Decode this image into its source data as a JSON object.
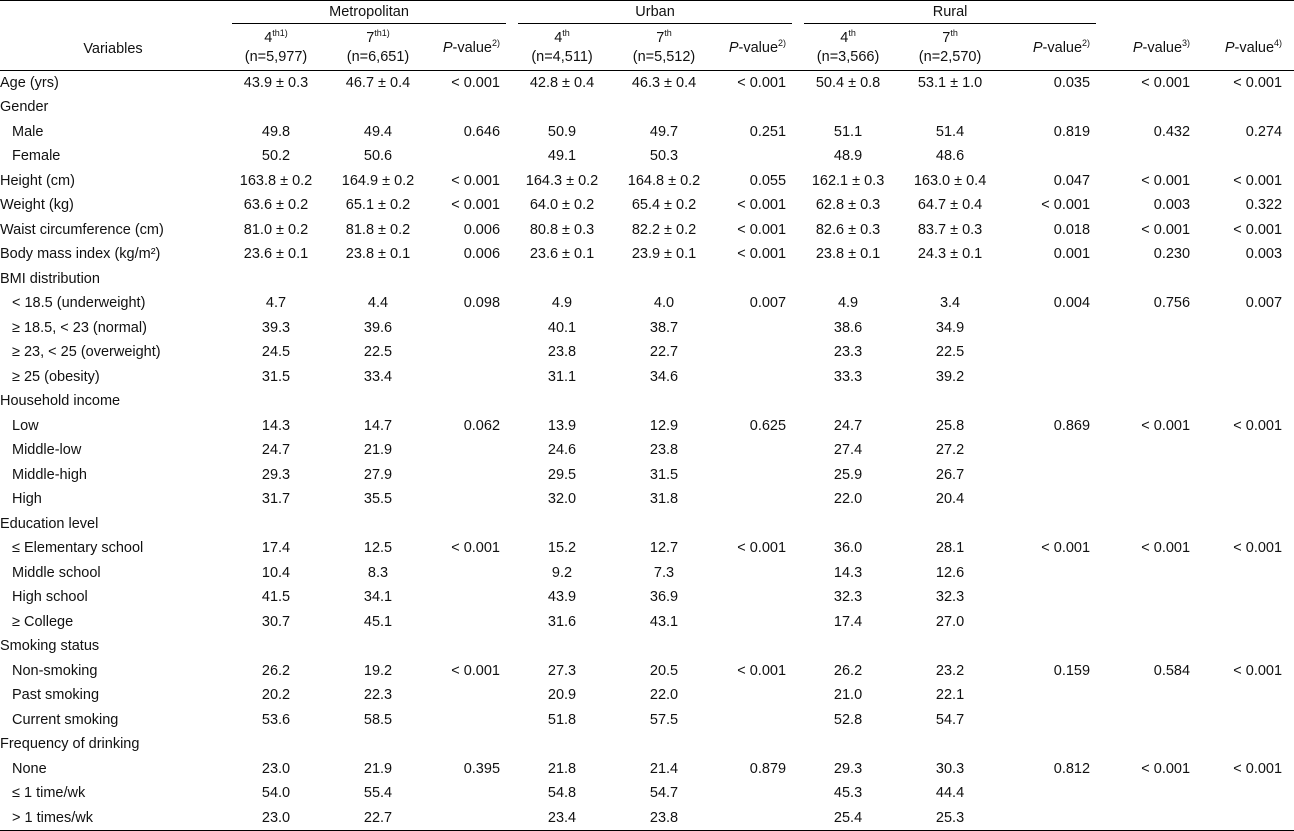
{
  "header": {
    "variables": "Variables",
    "groups": [
      "Metropolitan",
      "Urban",
      "Rural"
    ],
    "metro_4": {
      "label": "4",
      "sup": "th1)",
      "n": "(n=5,977)"
    },
    "metro_7": {
      "label": "7",
      "sup": "th1)",
      "n": "(n=6,651)"
    },
    "urban_4": {
      "label": "4",
      "sup": "th",
      "n": "(n=4,511)"
    },
    "urban_7": {
      "label": "7",
      "sup": "th",
      "n": "(n=5,512)"
    },
    "rural_4": {
      "label": "4",
      "sup": "th",
      "n": "(n=3,566)"
    },
    "rural_7": {
      "label": "7",
      "sup": "th",
      "n": "(n=2,570)"
    },
    "pvalue_prefix": "P",
    "pvalue_suffix": "-value",
    "pvalue_sups": [
      "2)",
      "2)",
      "2)",
      "3)",
      "4)"
    ]
  },
  "rows": [
    {
      "label": "Age (yrs)",
      "indent": false,
      "cells": [
        "43.9 ± 0.3",
        "46.7 ± 0.4",
        "< 0.001",
        "42.8 ± 0.4",
        "46.3 ± 0.4",
        "< 0.001",
        "50.4 ± 0.8",
        "53.1 ± 1.0",
        "0.035",
        "< 0.001",
        "< 0.001"
      ]
    },
    {
      "label": "Gender",
      "indent": false,
      "cells": [
        "",
        "",
        "",
        "",
        "",
        "",
        "",
        "",
        "",
        "",
        ""
      ]
    },
    {
      "label": "Male",
      "indent": true,
      "cells": [
        "49.8",
        "49.4",
        "0.646",
        "50.9",
        "49.7",
        "0.251",
        "51.1",
        "51.4",
        "0.819",
        "0.432",
        "0.274"
      ]
    },
    {
      "label": "Female",
      "indent": true,
      "cells": [
        "50.2",
        "50.6",
        "",
        "49.1",
        "50.3",
        "",
        "48.9",
        "48.6",
        "",
        "",
        ""
      ]
    },
    {
      "label": "Height (cm)",
      "indent": false,
      "cells": [
        "163.8 ± 0.2",
        "164.9 ± 0.2",
        "< 0.001",
        "164.3 ± 0.2",
        "164.8 ± 0.2",
        "0.055",
        "162.1 ± 0.3",
        "163.0 ± 0.4",
        "0.047",
        "< 0.001",
        "< 0.001"
      ]
    },
    {
      "label": "Weight (kg)",
      "indent": false,
      "cells": [
        "63.6 ± 0.2",
        "65.1 ± 0.2",
        "< 0.001",
        "64.0 ± 0.2",
        "65.4 ± 0.2",
        "< 0.001",
        "62.8 ± 0.3",
        "64.7 ± 0.4",
        "< 0.001",
        "0.003",
        "0.322"
      ]
    },
    {
      "label": "Waist circumference (cm)",
      "indent": false,
      "cells": [
        "81.0 ± 0.2",
        "81.8 ± 0.2",
        "0.006",
        "80.8 ± 0.3",
        "82.2 ± 0.2",
        "< 0.001",
        "82.6 ± 0.3",
        "83.7 ± 0.3",
        "0.018",
        "< 0.001",
        "< 0.001"
      ]
    },
    {
      "label": "Body mass index (kg/m²)",
      "indent": false,
      "cells": [
        "23.6 ± 0.1",
        "23.8 ± 0.1",
        "0.006",
        "23.6 ± 0.1",
        "23.9 ± 0.1",
        "< 0.001",
        "23.8 ± 0.1",
        "24.3 ± 0.1",
        "0.001",
        "0.230",
        "0.003"
      ]
    },
    {
      "label": "BMI distribution",
      "indent": false,
      "cells": [
        "",
        "",
        "",
        "",
        "",
        "",
        "",
        "",
        "",
        "",
        ""
      ]
    },
    {
      "label": "< 18.5 (underweight)",
      "indent": true,
      "cells": [
        "4.7",
        "4.4",
        "0.098",
        "4.9",
        "4.0",
        "0.007",
        "4.9",
        "3.4",
        "0.004",
        "0.756",
        "0.007"
      ]
    },
    {
      "label": "≥ 18.5, < 23 (normal)",
      "indent": true,
      "cells": [
        "39.3",
        "39.6",
        "",
        "40.1",
        "38.7",
        "",
        "38.6",
        "34.9",
        "",
        "",
        ""
      ]
    },
    {
      "label": "≥ 23, < 25 (overweight)",
      "indent": true,
      "cells": [
        "24.5",
        "22.5",
        "",
        "23.8",
        "22.7",
        "",
        "23.3",
        "22.5",
        "",
        "",
        ""
      ]
    },
    {
      "label": "≥ 25 (obesity)",
      "indent": true,
      "cells": [
        "31.5",
        "33.4",
        "",
        "31.1",
        "34.6",
        "",
        "33.3",
        "39.2",
        "",
        "",
        ""
      ]
    },
    {
      "label": "Household income",
      "indent": false,
      "cells": [
        "",
        "",
        "",
        "",
        "",
        "",
        "",
        "",
        "",
        "",
        ""
      ]
    },
    {
      "label": "Low",
      "indent": true,
      "cells": [
        "14.3",
        "14.7",
        "0.062",
        "13.9",
        "12.9",
        "0.625",
        "24.7",
        "25.8",
        "0.869",
        "< 0.001",
        "< 0.001"
      ]
    },
    {
      "label": "Middle-low",
      "indent": true,
      "cells": [
        "24.7",
        "21.9",
        "",
        "24.6",
        "23.8",
        "",
        "27.4",
        "27.2",
        "",
        "",
        ""
      ]
    },
    {
      "label": "Middle-high",
      "indent": true,
      "cells": [
        "29.3",
        "27.9",
        "",
        "29.5",
        "31.5",
        "",
        "25.9",
        "26.7",
        "",
        "",
        ""
      ]
    },
    {
      "label": "High",
      "indent": true,
      "cells": [
        "31.7",
        "35.5",
        "",
        "32.0",
        "31.8",
        "",
        "22.0",
        "20.4",
        "",
        "",
        ""
      ]
    },
    {
      "label": "Education level",
      "indent": false,
      "cells": [
        "",
        "",
        "",
        "",
        "",
        "",
        "",
        "",
        "",
        "",
        ""
      ]
    },
    {
      "label": "≤ Elementary school",
      "indent": true,
      "cells": [
        "17.4",
        "12.5",
        "< 0.001",
        "15.2",
        "12.7",
        "< 0.001",
        "36.0",
        "28.1",
        "< 0.001",
        "< 0.001",
        "< 0.001"
      ]
    },
    {
      "label": "Middle school",
      "indent": true,
      "cells": [
        "10.4",
        "8.3",
        "",
        "9.2",
        "7.3",
        "",
        "14.3",
        "12.6",
        "",
        "",
        ""
      ]
    },
    {
      "label": "High school",
      "indent": true,
      "cells": [
        "41.5",
        "34.1",
        "",
        "43.9",
        "36.9",
        "",
        "32.3",
        "32.3",
        "",
        "",
        ""
      ]
    },
    {
      "label": "≥ College",
      "indent": true,
      "cells": [
        "30.7",
        "45.1",
        "",
        "31.6",
        "43.1",
        "",
        "17.4",
        "27.0",
        "",
        "",
        ""
      ]
    },
    {
      "label": "Smoking status",
      "indent": false,
      "cells": [
        "",
        "",
        "",
        "",
        "",
        "",
        "",
        "",
        "",
        "",
        ""
      ]
    },
    {
      "label": "Non-smoking",
      "indent": true,
      "cells": [
        "26.2",
        "19.2",
        "< 0.001",
        "27.3",
        "20.5",
        "< 0.001",
        "26.2",
        "23.2",
        "0.159",
        "0.584",
        "< 0.001"
      ]
    },
    {
      "label": "Past smoking",
      "indent": true,
      "cells": [
        "20.2",
        "22.3",
        "",
        "20.9",
        "22.0",
        "",
        "21.0",
        "22.1",
        "",
        "",
        ""
      ]
    },
    {
      "label": "Current smoking",
      "indent": true,
      "cells": [
        "53.6",
        "58.5",
        "",
        "51.8",
        "57.5",
        "",
        "52.8",
        "54.7",
        "",
        "",
        ""
      ]
    },
    {
      "label": "Frequency of drinking",
      "indent": false,
      "cells": [
        "",
        "",
        "",
        "",
        "",
        "",
        "",
        "",
        "",
        "",
        ""
      ]
    },
    {
      "label": "None",
      "indent": true,
      "cells": [
        "23.0",
        "21.9",
        "0.395",
        "21.8",
        "21.4",
        "0.879",
        "29.3",
        "30.3",
        "0.812",
        "< 0.001",
        "< 0.001"
      ]
    },
    {
      "label": "≤ 1 time/wk",
      "indent": true,
      "cells": [
        "54.0",
        "55.4",
        "",
        "54.8",
        "54.7",
        "",
        "45.3",
        "44.4",
        "",
        "",
        ""
      ]
    },
    {
      "label": "> 1 times/wk",
      "indent": true,
      "cells": [
        "23.0",
        "22.7",
        "",
        "23.4",
        "23.8",
        "",
        "25.4",
        "25.3",
        "",
        "",
        ""
      ]
    }
  ]
}
